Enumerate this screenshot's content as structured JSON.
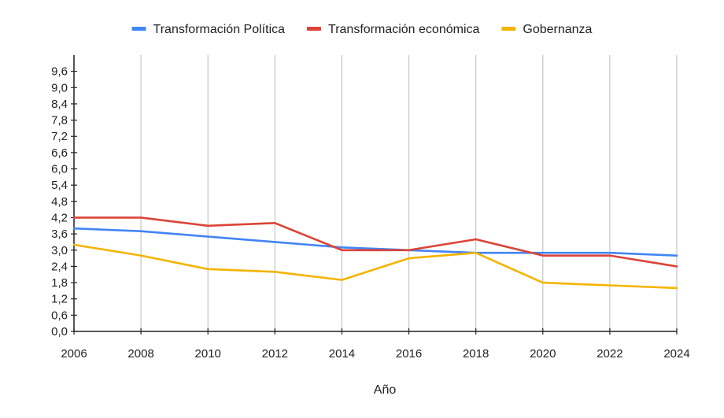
{
  "chart_data": {
    "type": "line",
    "title": "",
    "xlabel": "Año",
    "ylabel": "",
    "x": [
      2006,
      2008,
      2010,
      2012,
      2014,
      2016,
      2018,
      2020,
      2022,
      2024
    ],
    "xtick_labels": [
      "2006",
      "2008",
      "2010",
      "2012",
      "2014",
      "2016",
      "2018",
      "2020",
      "2022",
      "2024"
    ],
    "ylim": [
      0,
      10.2
    ],
    "yticks": [
      0,
      0.6,
      1.2,
      1.8,
      2.4,
      3.0,
      3.6,
      4.2,
      4.8,
      5.4,
      6.0,
      6.6,
      7.2,
      7.8,
      8.4,
      9.0,
      9.6
    ],
    "ytick_labels": [
      "0,0",
      "0,6",
      "1,2",
      "1,8",
      "2,4",
      "3,0",
      "3,6",
      "4,2",
      "4,8",
      "5,4",
      "6,0",
      "6,6",
      "7,2",
      "7,8",
      "8,4",
      "9,0",
      "9,6"
    ],
    "grid": "vertical",
    "legend_position": "top",
    "series": [
      {
        "name": "Transformación Política",
        "color": "#4285f4",
        "values": [
          3.8,
          3.7,
          3.5,
          3.3,
          3.1,
          3.0,
          2.9,
          2.9,
          2.9,
          2.8
        ]
      },
      {
        "name": "Transformación económica",
        "color": "#db4437",
        "values": [
          4.2,
          4.2,
          3.9,
          4.0,
          3.0,
          3.0,
          3.4,
          2.8,
          2.8,
          2.4
        ]
      },
      {
        "name": "Gobernanza",
        "color": "#f4b400",
        "values": [
          3.2,
          2.8,
          2.3,
          2.2,
          1.9,
          2.7,
          2.9,
          1.8,
          1.7,
          1.6
        ]
      }
    ]
  }
}
